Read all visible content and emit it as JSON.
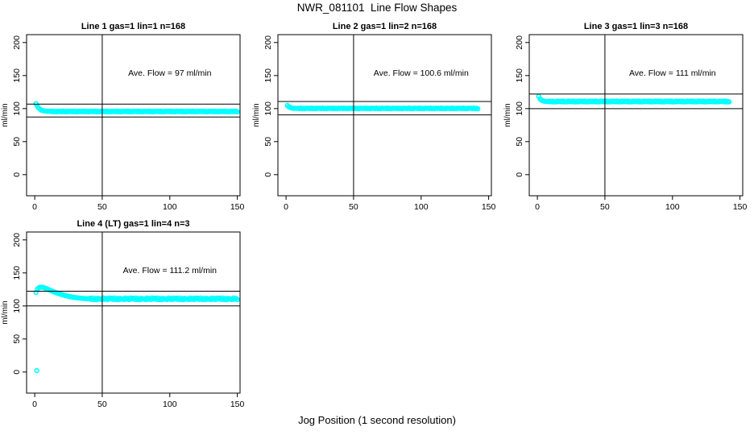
{
  "page": {
    "main_title": "NWR_081101  Line Flow Shapes",
    "x_axis_caption": "Jog Position (1 second resolution)",
    "background": "#FFFFFF",
    "accent_color": "#00FFFF"
  },
  "chart_data": [
    {
      "type": "scatter",
      "title": "Line 1 gas=1 lin=1 n=168",
      "annotation": "Ave. Flow =  97  ml/min",
      "annotation_xy": [
        100,
        150
      ],
      "ave_flow_ml_min": 97,
      "ylabel": "ml/min",
      "xticks": [
        0,
        50,
        100,
        150
      ],
      "yticks": [
        0,
        50,
        100,
        150,
        200
      ],
      "xlim": [
        -6,
        152
      ],
      "ylim": [
        -32,
        212
      ],
      "vline_x": 50,
      "hlines": [
        106.7,
        87.3
      ],
      "marker_color": "#00FFFF",
      "x_start": 1,
      "x_step": 1,
      "y": [
        107.5,
        103.5,
        100.8,
        99.0,
        97.8,
        97.0,
        96.6,
        96.2,
        96.0,
        95.9,
        96.2,
        95.5,
        96.3,
        95.2,
        95.9,
        95.0,
        96.0,
        95.4,
        96.2,
        95.3,
        96.4,
        95.1,
        95.9,
        95.0,
        96.1,
        95.5,
        96.2,
        95.3,
        96.4,
        95.1,
        95.9,
        95.0,
        96.1,
        95.5,
        96.2,
        95.3,
        96.4,
        95.1,
        95.9,
        95.0,
        96.1,
        95.5,
        96.2,
        95.3,
        96.4,
        95.1,
        95.9,
        95.0,
        96.1,
        95.5,
        96.2,
        95.3,
        96.4,
        95.1,
        95.9,
        95.0,
        96.1,
        95.5,
        96.2,
        95.3,
        96.4,
        95.1,
        95.9,
        95.0,
        96.1,
        95.5,
        96.2,
        95.3,
        96.4,
        95.1,
        95.9,
        95.0,
        96.1,
        95.5,
        96.2,
        95.3,
        96.4,
        95.1,
        95.9,
        95.0,
        96.1,
        95.5,
        96.2,
        95.3,
        96.4,
        95.1,
        95.9,
        95.0,
        96.1,
        95.5,
        96.2,
        95.3,
        96.4,
        95.1,
        95.9,
        95.0,
        96.1,
        95.5,
        96.2,
        95.3,
        96.4,
        95.1,
        95.9,
        95.0,
        96.1,
        95.5,
        96.2,
        95.3,
        96.4,
        95.1,
        95.9,
        95.0,
        96.1,
        95.5,
        96.2,
        95.3,
        96.4,
        95.1,
        95.9,
        95.0,
        96.1,
        95.5,
        96.2,
        95.3,
        96.4,
        95.1,
        95.9,
        95.0,
        96.1,
        95.5,
        96.2,
        95.3,
        96.4,
        95.1,
        95.9,
        95.0,
        96.1,
        95.5,
        96.2,
        95.3,
        96.4,
        95.1,
        95.9,
        95.0,
        96.1,
        95.5,
        96.2,
        95.3,
        96.4,
        95.1
      ],
      "extra_points": []
    },
    {
      "type": "scatter",
      "title": "Line 2 gas=1 lin=2 n=168",
      "annotation": "Ave. Flow =  100.6  ml/min",
      "annotation_xy": [
        100,
        150
      ],
      "ave_flow_ml_min": 100.6,
      "ylabel": "ml/min",
      "xticks": [
        0,
        50,
        100,
        150
      ],
      "yticks": [
        0,
        50,
        100,
        150,
        200
      ],
      "xlim": [
        -6,
        152
      ],
      "ylim": [
        -32,
        212
      ],
      "vline_x": 50,
      "hlines": [
        110.7,
        90.5
      ],
      "marker_color": "#00FFFF",
      "x_start": 1,
      "x_step": 1,
      "y": [
        104.8,
        103.0,
        101.8,
        101.0,
        100.6,
        100.4,
        100.5,
        100.2,
        100.6,
        100.0,
        100.8,
        99.9,
        100.4,
        99.8,
        100.7,
        100.2,
        100.6,
        100.0,
        100.8,
        99.9,
        100.4,
        99.8,
        100.7,
        100.2,
        100.6,
        100.0,
        100.8,
        99.9,
        100.4,
        99.8,
        100.7,
        100.2,
        100.6,
        100.0,
        100.8,
        99.9,
        100.4,
        99.8,
        100.7,
        100.2,
        100.6,
        100.0,
        100.8,
        99.9,
        100.4,
        99.8,
        100.7,
        100.2,
        100.6,
        100.0,
        100.8,
        99.9,
        100.4,
        99.8,
        100.7,
        100.2,
        100.6,
        100.0,
        100.8,
        99.9,
        100.4,
        99.8,
        100.7,
        100.2,
        100.6,
        100.0,
        100.8,
        99.9,
        100.4,
        99.8,
        100.7,
        100.2,
        100.6,
        100.0,
        100.8,
        99.9,
        100.4,
        99.8,
        100.7,
        100.2,
        100.6,
        100.0,
        100.8,
        99.9,
        100.4,
        99.8,
        100.7,
        100.2,
        100.6,
        100.0,
        100.8,
        99.9,
        100.4,
        99.8,
        100.7,
        100.2,
        100.6,
        100.0,
        100.8,
        99.9,
        100.4,
        99.8,
        100.7,
        100.2,
        100.6,
        100.0,
        100.8,
        99.9,
        100.4,
        99.8,
        100.7,
        100.2,
        100.6,
        100.0,
        100.8,
        99.9,
        100.4,
        99.8,
        100.7,
        100.2,
        100.6,
        100.0,
        100.8,
        99.9,
        100.4,
        99.8,
        100.7,
        100.2,
        100.6,
        100.0,
        100.8,
        99.9,
        100.4,
        99.8,
        100.7,
        100.2,
        100.6,
        100.0,
        100.8,
        99.9,
        100.4,
        99.8
      ],
      "extra_points": []
    },
    {
      "type": "scatter",
      "title": "Line 3 gas=1 lin=3 n=168",
      "annotation": "Ave. Flow =  111  ml/min",
      "annotation_xy": [
        100,
        150
      ],
      "ave_flow_ml_min": 111,
      "ylabel": "ml/min",
      "xticks": [
        0,
        50,
        100,
        150
      ],
      "yticks": [
        0,
        50,
        100,
        150,
        200
      ],
      "xlim": [
        -6,
        152
      ],
      "ylim": [
        -32,
        212
      ],
      "vline_x": 50,
      "hlines": [
        122.1,
        99.9
      ],
      "marker_color": "#00FFFF",
      "x_start": 1,
      "x_step": 1,
      "y": [
        118.5,
        114.8,
        112.9,
        111.9,
        111.3,
        111.0,
        110.8,
        110.6,
        111.2,
        110.2,
        111.4,
        110.0,
        110.9,
        110.1,
        111.3,
        110.5,
        111.2,
        110.2,
        111.4,
        110.0,
        110.9,
        110.1,
        111.3,
        110.5,
        111.2,
        110.2,
        111.4,
        110.0,
        110.9,
        110.1,
        111.3,
        110.5,
        111.2,
        110.2,
        111.4,
        110.0,
        110.9,
        110.1,
        111.3,
        110.5,
        111.2,
        110.2,
        111.4,
        110.0,
        110.9,
        110.1,
        111.3,
        110.5,
        111.2,
        110.2,
        111.4,
        110.0,
        110.9,
        110.1,
        111.3,
        110.5,
        111.2,
        110.2,
        111.4,
        110.0,
        110.9,
        110.1,
        111.3,
        110.5,
        111.2,
        110.2,
        111.4,
        110.0,
        110.9,
        110.1,
        111.3,
        110.5,
        111.2,
        110.2,
        111.4,
        110.0,
        110.9,
        110.1,
        111.3,
        110.5,
        111.2,
        110.2,
        111.4,
        110.0,
        110.9,
        110.1,
        111.3,
        110.5,
        111.2,
        110.2,
        111.4,
        110.0,
        110.9,
        110.1,
        111.3,
        110.5,
        111.2,
        110.2,
        111.4,
        110.0,
        110.9,
        110.1,
        111.3,
        110.5,
        111.2,
        110.2,
        111.4,
        110.0,
        110.9,
        110.1,
        111.3,
        110.5,
        111.2,
        110.2,
        111.4,
        110.0,
        110.9,
        110.1,
        111.3,
        110.5,
        111.2,
        110.2,
        111.4,
        110.0,
        110.9,
        110.1,
        111.3,
        110.5,
        111.2,
        110.2,
        111.4,
        110.0,
        110.9,
        110.1,
        111.3,
        110.5,
        111.2,
        110.2,
        111.4,
        110.0,
        110.9,
        110.1
      ],
      "extra_points": []
    },
    {
      "type": "scatter",
      "title": "Line 4 (LT) gas=1 lin=4 n=3",
      "annotation": "Ave. Flow =  111.2  ml/min",
      "annotation_xy": [
        100,
        150
      ],
      "ave_flow_ml_min": 111.2,
      "ylabel": "ml/min",
      "xticks": [
        0,
        50,
        100,
        150
      ],
      "yticks": [
        0,
        50,
        100,
        150,
        200
      ],
      "xlim": [
        -6,
        152
      ],
      "ylim": [
        -32,
        212
      ],
      "vline_x": 50,
      "hlines": [
        122.3,
        100.1
      ],
      "marker_color": "#00FFFF",
      "x_start": 1,
      "x_step": 1,
      "y": [
        120.5,
        125.5,
        127.5,
        128.3,
        128.5,
        128.2,
        127.6,
        126.8,
        126.0,
        125.1,
        124.2,
        123.3,
        122.4,
        121.6,
        120.8,
        120.0,
        119.3,
        118.6,
        117.9,
        117.3,
        116.7,
        116.1,
        115.6,
        115.1,
        114.6,
        114.2,
        113.8,
        113.4,
        113.1,
        112.8,
        112.5,
        112.2,
        112.0,
        111.8,
        111.6,
        111.4,
        111.2,
        111.1,
        111.0,
        110.9,
        111.8,
        109.9,
        112.0,
        109.7,
        111.2,
        109.5,
        111.6,
        110.3,
        110.9,
        109.8,
        111.9,
        110.1,
        111.4,
        109.6,
        112.1,
        110.6,
        111.8,
        109.9,
        112.0,
        109.7,
        111.2,
        109.5,
        111.6,
        110.3,
        110.9,
        109.8,
        111.9,
        110.1,
        111.4,
        109.6,
        112.1,
        110.6,
        111.8,
        109.9,
        112.0,
        109.7,
        111.2,
        109.5,
        111.6,
        110.3,
        110.9,
        109.8,
        111.9,
        110.1,
        111.4,
        109.6,
        112.1,
        110.6,
        111.8,
        109.9,
        112.0,
        109.7,
        111.2,
        109.5,
        111.6,
        110.3,
        110.9,
        109.8,
        111.9,
        110.1,
        111.4,
        109.6,
        112.1,
        110.6,
        111.8,
        109.9,
        112.0,
        109.7,
        111.2,
        109.5,
        111.6,
        110.3,
        110.9,
        109.8,
        111.9,
        110.1,
        111.4,
        109.6,
        112.1,
        110.6,
        111.8,
        109.9,
        112.0,
        109.7,
        111.2,
        109.5,
        111.6,
        110.3,
        110.9,
        109.8,
        111.9,
        110.1,
        111.4,
        109.6,
        112.1,
        110.6,
        111.8,
        109.9,
        112.0,
        109.7,
        111.2,
        109.5,
        111.6,
        110.3,
        110.9,
        109.8,
        111.9,
        110.1,
        111.4,
        109.6
      ],
      "extra_points": [
        [
          1.5,
          2
        ]
      ]
    }
  ]
}
